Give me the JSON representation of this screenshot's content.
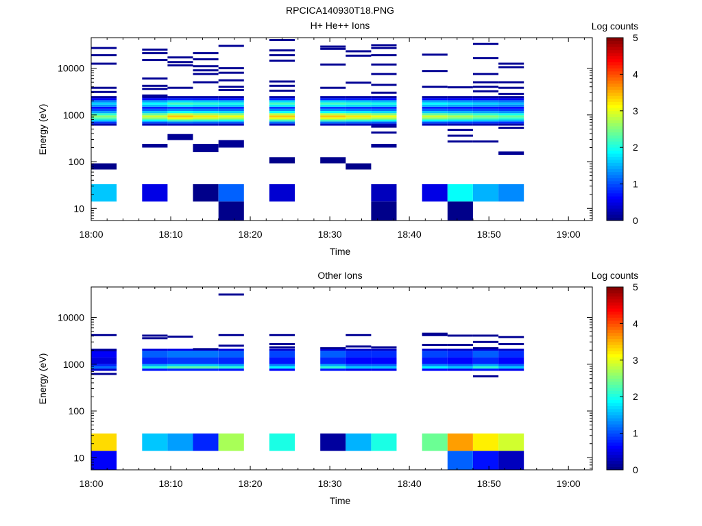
{
  "figure": {
    "title": "RPCICA140930T18.PNG"
  },
  "chart_data": [
    {
      "type": "heatmap",
      "title": "H+ He++ Ions",
      "xlabel": "Time",
      "ylabel": "Energy (eV)",
      "x_ticks": [
        "18:00",
        "18:10",
        "18:20",
        "18:30",
        "18:40",
        "18:50",
        "19:00"
      ],
      "x_range_minutes": [
        0,
        63
      ],
      "y_scale": "log",
      "y_ticks": [
        "10",
        "100",
        "1000",
        "10000"
      ],
      "ylim": [
        5.5,
        45000
      ],
      "colorbar": {
        "label": "Log counts",
        "range": [
          0,
          5
        ],
        "ticks": [
          "0",
          "1",
          "2",
          "3",
          "4",
          "5"
        ],
        "colormap": "jet"
      },
      "time_bins_minutes": [
        0,
        3.2,
        6.4,
        9.6,
        12.8,
        16,
        19.2,
        22.4,
        25.6,
        28.8,
        32,
        35.2,
        38.4,
        41.6,
        44.8,
        48,
        51.2,
        54.4
      ],
      "cells": [
        {
          "t0": 0,
          "t1": 3.2,
          "e0": 14,
          "e1": 33,
          "v": 1.6
        },
        {
          "t0": 6.4,
          "t1": 9.6,
          "e0": 14,
          "e1": 33,
          "v": 0.5
        },
        {
          "t0": 12.8,
          "t1": 16,
          "e0": 14,
          "e1": 33,
          "v": 0.05
        },
        {
          "t0": 16,
          "t1": 19.2,
          "e0": 14,
          "e1": 33,
          "v": 1.1
        },
        {
          "t0": 16,
          "t1": 19.2,
          "e0": 5.5,
          "e1": 14,
          "v": 0.05
        },
        {
          "t0": 22.4,
          "t1": 25.6,
          "e0": 14,
          "e1": 33,
          "v": 0.4
        },
        {
          "t0": 35.2,
          "t1": 38.4,
          "e0": 14,
          "e1": 33,
          "v": 0.3
        },
        {
          "t0": 35.2,
          "t1": 38.4,
          "e0": 5.5,
          "e1": 14,
          "v": 0.05
        },
        {
          "t0": 41.6,
          "t1": 44.8,
          "e0": 14,
          "e1": 33,
          "v": 0.5
        },
        {
          "t0": 44.8,
          "t1": 48,
          "e0": 14,
          "e1": 33,
          "v": 1.9
        },
        {
          "t0": 44.8,
          "t1": 48,
          "e0": 5.5,
          "e1": 14,
          "v": 0.05
        },
        {
          "t0": 48,
          "t1": 51.2,
          "e0": 14,
          "e1": 33,
          "v": 1.5
        },
        {
          "t0": 51.2,
          "t1": 54.4,
          "e0": 14,
          "e1": 33,
          "v": 1.3
        },
        {
          "t0": 0,
          "t1": 3.2,
          "e0": 68,
          "e1": 92,
          "v": 0.05
        },
        {
          "t0": 22.4,
          "t1": 25.6,
          "e0": 92,
          "e1": 125,
          "v": 0.05
        },
        {
          "t0": 28.8,
          "t1": 32,
          "e0": 92,
          "e1": 125,
          "v": 0.05
        },
        {
          "t0": 32,
          "t1": 35.2,
          "e0": 68,
          "e1": 92,
          "v": 0.05
        },
        {
          "t0": 6.4,
          "t1": 9.6,
          "e0": 200,
          "e1": 240,
          "v": 0.1
        },
        {
          "t0": 9.6,
          "t1": 12.8,
          "e0": 290,
          "e1": 390,
          "v": 0.1
        },
        {
          "t0": 12.8,
          "t1": 16,
          "e0": 160,
          "e1": 240,
          "v": 0.1
        },
        {
          "t0": 16,
          "t1": 19.2,
          "e0": 200,
          "e1": 290,
          "v": 0.1
        },
        {
          "t0": 35.2,
          "t1": 38.4,
          "e0": 200,
          "e1": 240,
          "v": 0.1
        },
        {
          "t0": 51.2,
          "t1": 54.4,
          "e0": 140,
          "e1": 165,
          "v": 0.1
        }
      ],
      "spectrum_columns": [
        {
          "t0": 0,
          "t1": 3.2,
          "intensity": 0.75
        },
        {
          "t0": 6.4,
          "t1": 9.6,
          "intensity": 0.85
        },
        {
          "t0": 9.6,
          "t1": 12.8,
          "intensity": 1.0
        },
        {
          "t0": 12.8,
          "t1": 16,
          "intensity": 0.95
        },
        {
          "t0": 16,
          "t1": 19.2,
          "intensity": 0.9
        },
        {
          "t0": 22.4,
          "t1": 25.6,
          "intensity": 1.0
        },
        {
          "t0": 28.8,
          "t1": 32,
          "intensity": 1.0
        },
        {
          "t0": 32,
          "t1": 35.2,
          "intensity": 0.95
        },
        {
          "t0": 35.2,
          "t1": 38.4,
          "intensity": 0.9
        },
        {
          "t0": 41.6,
          "t1": 44.8,
          "intensity": 0.85
        },
        {
          "t0": 44.8,
          "t1": 48,
          "intensity": 0.8
        },
        {
          "t0": 48,
          "t1": 51.2,
          "intensity": 0.75
        },
        {
          "t0": 51.2,
          "t1": 54.4,
          "intensity": 0.7
        }
      ],
      "spectrum_levels": [
        {
          "e": 620,
          "v": 0.3
        },
        {
          "e": 690,
          "v": 1.2
        },
        {
          "e": 760,
          "v": 2.2
        },
        {
          "e": 840,
          "v": 3.0
        },
        {
          "e": 930,
          "v": 3.4
        },
        {
          "e": 1030,
          "v": 2.8
        },
        {
          "e": 1150,
          "v": 1.9
        },
        {
          "e": 1280,
          "v": 1.3
        },
        {
          "e": 1420,
          "v": 0.9
        },
        {
          "e": 1580,
          "v": 1.8
        },
        {
          "e": 1750,
          "v": 2.2
        },
        {
          "e": 1950,
          "v": 1.7
        },
        {
          "e": 2170,
          "v": 0.8
        },
        {
          "e": 2420,
          "v": 0.2
        }
      ],
      "lines": [
        {
          "t": 0,
          "e": 27000
        },
        {
          "t": 0,
          "e": 19000
        },
        {
          "t": 0,
          "e": 12500
        },
        {
          "t": 0,
          "e": 3800
        },
        {
          "t": 0,
          "e": 3100
        },
        {
          "t": 6.4,
          "e": 25000
        },
        {
          "t": 6.4,
          "e": 21000
        },
        {
          "t": 6.4,
          "e": 15000
        },
        {
          "t": 6.4,
          "e": 6000
        },
        {
          "t": 6.4,
          "e": 4200
        },
        {
          "t": 6.4,
          "e": 3600
        },
        {
          "t": 6.4,
          "e": 2600
        },
        {
          "t": 9.6,
          "e": 17000
        },
        {
          "t": 9.6,
          "e": 13500
        },
        {
          "t": 9.6,
          "e": 11500
        },
        {
          "t": 9.6,
          "e": 3800
        },
        {
          "t": 12.8,
          "e": 21000
        },
        {
          "t": 12.8,
          "e": 15500
        },
        {
          "t": 12.8,
          "e": 11000
        },
        {
          "t": 12.8,
          "e": 9000
        },
        {
          "t": 12.8,
          "e": 7500
        },
        {
          "t": 12.8,
          "e": 5000
        },
        {
          "t": 16,
          "e": 30000
        },
        {
          "t": 16,
          "e": 10000
        },
        {
          "t": 16,
          "e": 8000
        },
        {
          "t": 16,
          "e": 5500
        },
        {
          "t": 16,
          "e": 4000
        },
        {
          "t": 16,
          "e": 3400
        },
        {
          "t": 22.4,
          "e": 40000
        },
        {
          "t": 22.4,
          "e": 24000
        },
        {
          "t": 22.4,
          "e": 19000
        },
        {
          "t": 22.4,
          "e": 14500
        },
        {
          "t": 22.4,
          "e": 5200
        },
        {
          "t": 22.4,
          "e": 4200
        },
        {
          "t": 22.4,
          "e": 3300
        },
        {
          "t": 28.8,
          "e": 29000
        },
        {
          "t": 28.8,
          "e": 26000
        },
        {
          "t": 28.8,
          "e": 12000
        },
        {
          "t": 28.8,
          "e": 3800
        },
        {
          "t": 32,
          "e": 23000
        },
        {
          "t": 32,
          "e": 18500
        },
        {
          "t": 32,
          "e": 4900
        },
        {
          "t": 35.2,
          "e": 31000
        },
        {
          "t": 35.2,
          "e": 27000
        },
        {
          "t": 35.2,
          "e": 19000
        },
        {
          "t": 35.2,
          "e": 12000
        },
        {
          "t": 35.2,
          "e": 7500
        },
        {
          "t": 35.2,
          "e": 4400
        },
        {
          "t": 35.2,
          "e": 3000
        },
        {
          "t": 35.2,
          "e": 560
        },
        {
          "t": 35.2,
          "e": 420
        },
        {
          "t": 41.6,
          "e": 19500
        },
        {
          "t": 41.6,
          "e": 8700
        },
        {
          "t": 41.6,
          "e": 4000
        },
        {
          "t": 44.8,
          "e": 3900
        },
        {
          "t": 44.8,
          "e": 480
        },
        {
          "t": 44.8,
          "e": 360
        },
        {
          "t": 44.8,
          "e": 270
        },
        {
          "t": 48,
          "e": 33000
        },
        {
          "t": 48,
          "e": 16500
        },
        {
          "t": 48,
          "e": 7500
        },
        {
          "t": 48,
          "e": 5000
        },
        {
          "t": 48,
          "e": 4000
        },
        {
          "t": 48,
          "e": 3200
        },
        {
          "t": 48,
          "e": 270
        },
        {
          "t": 51.2,
          "e": 12500
        },
        {
          "t": 51.2,
          "e": 10500
        },
        {
          "t": 51.2,
          "e": 5000
        },
        {
          "t": 51.2,
          "e": 3800
        },
        {
          "t": 51.2,
          "e": 2800
        },
        {
          "t": 51.2,
          "e": 530
        }
      ]
    },
    {
      "type": "heatmap",
      "title": "Other Ions",
      "xlabel": "Time",
      "ylabel": "Energy (eV)",
      "x_ticks": [
        "18:00",
        "18:10",
        "18:20",
        "18:30",
        "18:40",
        "18:50",
        "19:00"
      ],
      "x_range_minutes": [
        0,
        63
      ],
      "y_scale": "log",
      "y_ticks": [
        "10",
        "100",
        "1000",
        "10000"
      ],
      "ylim": [
        5.5,
        45000
      ],
      "colorbar": {
        "label": "Log counts",
        "range": [
          0,
          5
        ],
        "ticks": [
          "0",
          "1",
          "2",
          "3",
          "4",
          "5"
        ],
        "colormap": "jet"
      },
      "cells": [
        {
          "t0": 0,
          "t1": 3.2,
          "e0": 14,
          "e1": 33,
          "v": 3.3
        },
        {
          "t0": 0,
          "t1": 3.2,
          "e0": 5.5,
          "e1": 14,
          "v": 0.6
        },
        {
          "t0": 6.4,
          "t1": 9.6,
          "e0": 14,
          "e1": 33,
          "v": 1.6
        },
        {
          "t0": 9.6,
          "t1": 12.8,
          "e0": 14,
          "e1": 33,
          "v": 1.4
        },
        {
          "t0": 12.8,
          "t1": 16,
          "e0": 14,
          "e1": 33,
          "v": 0.8
        },
        {
          "t0": 16,
          "t1": 19.2,
          "e0": 14,
          "e1": 33,
          "v": 2.7
        },
        {
          "t0": 22.4,
          "t1": 25.6,
          "e0": 14,
          "e1": 33,
          "v": 2.0
        },
        {
          "t0": 28.8,
          "t1": 32,
          "e0": 14,
          "e1": 33,
          "v": 0.15
        },
        {
          "t0": 32,
          "t1": 35.2,
          "e0": 14,
          "e1": 33,
          "v": 1.5
        },
        {
          "t0": 35.2,
          "t1": 38.4,
          "e0": 14,
          "e1": 33,
          "v": 2.0
        },
        {
          "t0": 41.6,
          "t1": 44.8,
          "e0": 14,
          "e1": 33,
          "v": 2.4
        },
        {
          "t0": 44.8,
          "t1": 48,
          "e0": 14,
          "e1": 33,
          "v": 3.6
        },
        {
          "t0": 44.8,
          "t1": 48,
          "e0": 5.5,
          "e1": 14,
          "v": 1.1
        },
        {
          "t0": 48,
          "t1": 51.2,
          "e0": 14,
          "e1": 33,
          "v": 3.2
        },
        {
          "t0": 48,
          "t1": 51.2,
          "e0": 5.5,
          "e1": 14,
          "v": 0.7
        },
        {
          "t0": 51.2,
          "t1": 54.4,
          "e0": 14,
          "e1": 33,
          "v": 2.9
        },
        {
          "t0": 51.2,
          "t1": 54.4,
          "e0": 5.5,
          "e1": 14,
          "v": 0.3
        }
      ],
      "spectrum_columns": [
        {
          "t0": 0,
          "t1": 3.2,
          "intensity": 0.5
        },
        {
          "t0": 6.4,
          "t1": 9.6,
          "intensity": 0.9
        },
        {
          "t0": 9.6,
          "t1": 12.8,
          "intensity": 1.0
        },
        {
          "t0": 12.8,
          "t1": 16,
          "intensity": 1.0
        },
        {
          "t0": 16,
          "t1": 19.2,
          "intensity": 0.9
        },
        {
          "t0": 22.4,
          "t1": 25.6,
          "intensity": 0.8
        },
        {
          "t0": 28.8,
          "t1": 32,
          "intensity": 0.9
        },
        {
          "t0": 32,
          "t1": 35.2,
          "intensity": 0.7
        },
        {
          "t0": 35.2,
          "t1": 38.4,
          "intensity": 0.7
        },
        {
          "t0": 41.6,
          "t1": 44.8,
          "intensity": 0.8
        },
        {
          "t0": 44.8,
          "t1": 48,
          "intensity": 0.7
        },
        {
          "t0": 48,
          "t1": 51.2,
          "intensity": 0.9
        },
        {
          "t0": 51.2,
          "t1": 54.4,
          "intensity": 0.7
        }
      ],
      "spectrum_levels": [
        {
          "e": 760,
          "v": 0.8
        },
        {
          "e": 860,
          "v": 2.3
        },
        {
          "e": 960,
          "v": 1.6
        },
        {
          "e": 1060,
          "v": 0.9
        },
        {
          "e": 1850,
          "v": 1.2
        },
        {
          "e": 2050,
          "v": 0.5
        }
      ],
      "lines": [
        {
          "t": 0,
          "e": 4200
        },
        {
          "t": 0,
          "e": 620
        },
        {
          "t": 0,
          "e": 2000
        },
        {
          "t": 6.4,
          "e": 4100
        },
        {
          "t": 6.4,
          "e": 3600
        },
        {
          "t": 9.6,
          "e": 3900
        },
        {
          "t": 12.8,
          "e": 2100
        },
        {
          "t": 16,
          "e": 31000
        },
        {
          "t": 16,
          "e": 4200
        },
        {
          "t": 16,
          "e": 2500
        },
        {
          "t": 22.4,
          "e": 4200
        },
        {
          "t": 22.4,
          "e": 2700
        },
        {
          "t": 22.4,
          "e": 2300
        },
        {
          "t": 28.8,
          "e": 2200
        },
        {
          "t": 32,
          "e": 4200
        },
        {
          "t": 32,
          "e": 2400
        },
        {
          "t": 35.2,
          "e": 2300
        },
        {
          "t": 41.6,
          "e": 4500
        },
        {
          "t": 41.6,
          "e": 4200
        },
        {
          "t": 41.6,
          "e": 2600
        },
        {
          "t": 44.8,
          "e": 4100
        },
        {
          "t": 44.8,
          "e": 2600
        },
        {
          "t": 48,
          "e": 4100
        },
        {
          "t": 48,
          "e": 3000
        },
        {
          "t": 48,
          "e": 2200
        },
        {
          "t": 48,
          "e": 550
        },
        {
          "t": 51.2,
          "e": 3800
        },
        {
          "t": 51.2,
          "e": 2700
        }
      ]
    }
  ]
}
